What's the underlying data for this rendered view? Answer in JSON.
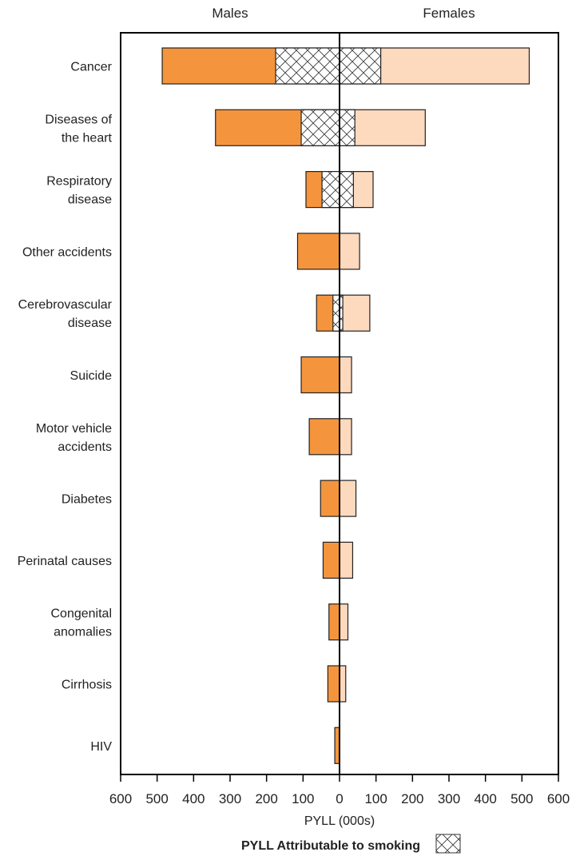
{
  "chart_data": {
    "type": "bar",
    "orientation": "horizontal-diverging",
    "left_header": "Males",
    "right_header": "Females",
    "xlabel": "PYLL (000s)",
    "xlim": [
      -600,
      600
    ],
    "x_ticks": [
      -600,
      -500,
      -400,
      -300,
      -200,
      -100,
      0,
      100,
      200,
      300,
      400,
      500,
      600
    ],
    "x_tick_labels": [
      "600",
      "500",
      "400",
      "300",
      "200",
      "100",
      "0",
      "100",
      "200",
      "300",
      "400",
      "500",
      "600"
    ],
    "categories": [
      [
        "Cancer"
      ],
      [
        "Diseases of",
        "the heart"
      ],
      [
        "Respiratory",
        "disease"
      ],
      [
        "Other accidents"
      ],
      [
        "Cerebrovascular",
        "disease"
      ],
      [
        "Suicide"
      ],
      [
        "Motor vehicle",
        "accidents"
      ],
      [
        "Diabetes"
      ],
      [
        "Perinatal causes"
      ],
      [
        "Congenital",
        "anomalies"
      ],
      [
        "Cirrhosis"
      ],
      [
        "HIV"
      ]
    ],
    "series": [
      {
        "name": "Males",
        "color": "#f4953e",
        "values": [
          486,
          340,
          92,
          115,
          63,
          105,
          83,
          52,
          45,
          29,
          32,
          13
        ]
      },
      {
        "name": "Females",
        "color": "#fdd9bd",
        "values": [
          520,
          235,
          92,
          55,
          83,
          33,
          33,
          45,
          36,
          23,
          17,
          0
        ]
      },
      {
        "name": "Males smoking",
        "pattern": "crosshatch",
        "values": [
          175,
          105,
          48,
          0,
          18,
          0,
          0,
          0,
          0,
          0,
          0,
          0
        ]
      },
      {
        "name": "Females smoking",
        "pattern": "crosshatch",
        "values": [
          113,
          42,
          38,
          0,
          9,
          0,
          0,
          0,
          0,
          0,
          0,
          0
        ]
      }
    ],
    "legend": {
      "label": "PYLL Attributable to smoking",
      "position": "bottom-center"
    },
    "grid": false
  }
}
